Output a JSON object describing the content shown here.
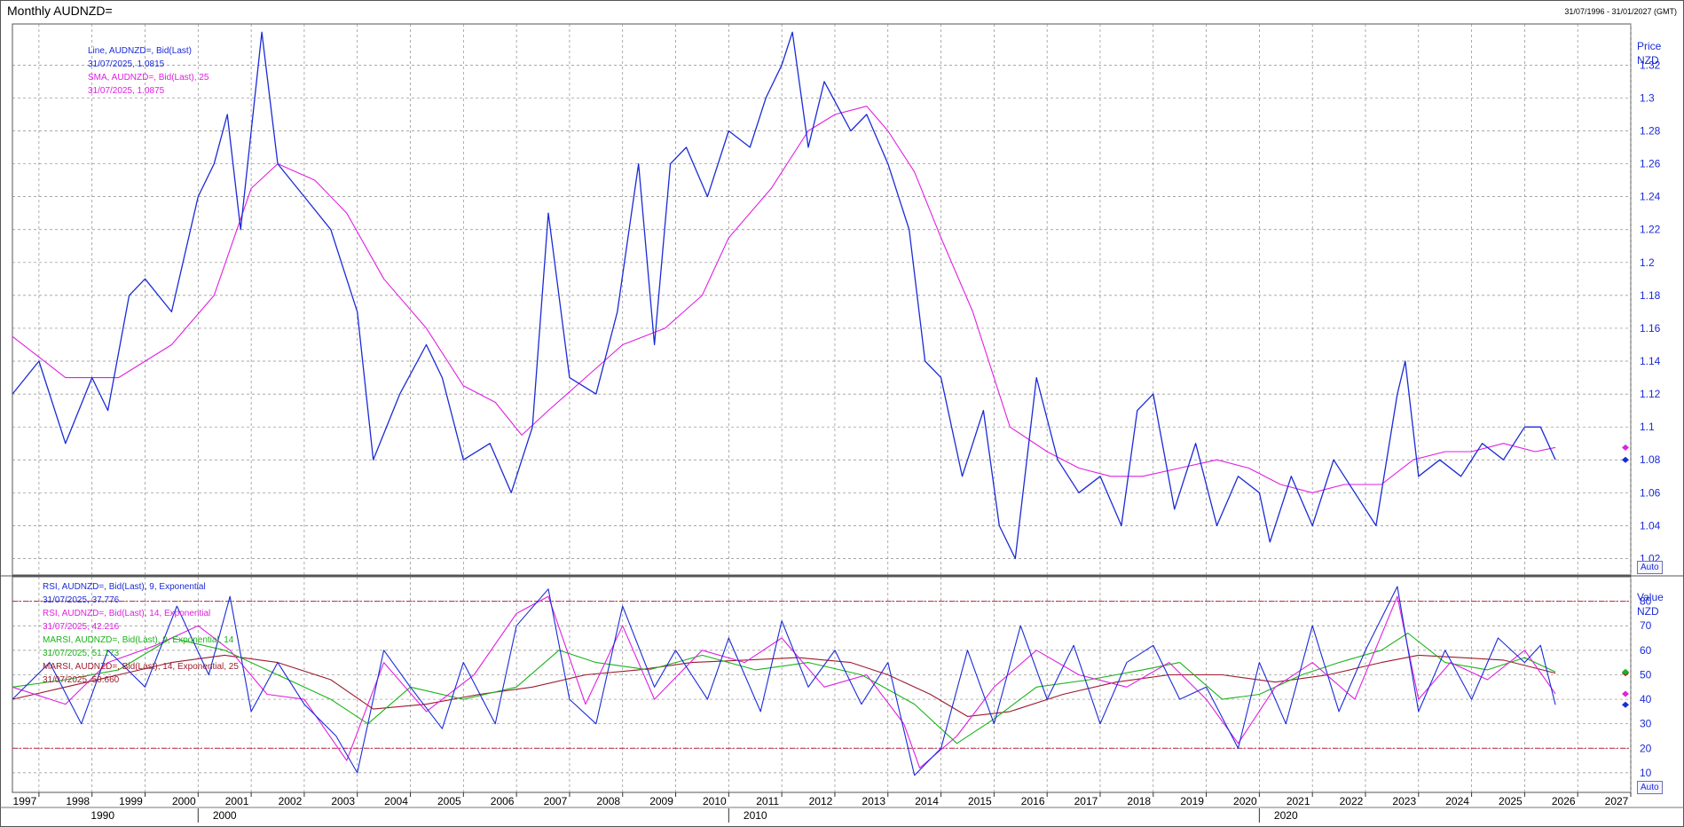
{
  "header": {
    "title": "Monthly AUDNZD=",
    "range": "31/07/1996 - 31/01/2027 (GMT)"
  },
  "price_panel": {
    "axis_title": "Price",
    "axis_unit": "NZD",
    "auto_label": "Auto",
    "legend": [
      {
        "label": "Line, AUDNZD=, Bid(Last)",
        "value": "31/07/2025, 1.0815",
        "color": "#1a2bd6"
      },
      {
        "label": "SMA, AUDNZD=, Bid(Last),  25",
        "value": "31/07/2025, 1.0875",
        "color": "#e020e0"
      }
    ],
    "y_ticks": [
      "1.02",
      "1.04",
      "1.06",
      "1.08",
      "1.1",
      "1.12",
      "1.14",
      "1.16",
      "1.18",
      "1.2",
      "1.22",
      "1.24",
      "1.26",
      "1.28",
      "1.3",
      "1.32"
    ]
  },
  "rsi_panel": {
    "axis_title": "Value",
    "axis_unit": "NZD",
    "auto_label": "Auto",
    "legend": [
      {
        "label": "RSI, AUDNZD=, Bid(Last),  9, Exponential",
        "value": "31/07/2025, 37.776",
        "color": "#1a2bd6"
      },
      {
        "label": "RSI, AUDNZD=, Bid(Last),  14, Exponential",
        "value": "31/07/2025, 42.216",
        "color": "#e020e0"
      },
      {
        "label": "MARSI, AUDNZD=, Bid(Last),  9, Exponential, 14",
        "value": "31/07/2025, 51.173",
        "color": "#19b319"
      },
      {
        "label": "MARSI, AUDNZD=, Bid(Last),  14, Exponential, 25",
        "value": "31/07/2025, 50.660",
        "color": "#9b1c2c"
      }
    ],
    "y_ticks": [
      "10",
      "20",
      "30",
      "40",
      "50",
      "60",
      "70",
      "80"
    ]
  },
  "x_axis": {
    "years": [
      "1997",
      "1998",
      "1999",
      "2000",
      "2001",
      "2002",
      "2003",
      "2004",
      "2005",
      "2006",
      "2007",
      "2008",
      "2009",
      "2010",
      "2011",
      "2012",
      "2013",
      "2014",
      "2015",
      "2016",
      "2017",
      "2018",
      "2019",
      "2020",
      "2021",
      "2022",
      "2023",
      "2024",
      "2025",
      "2026",
      "2027"
    ],
    "decades": [
      "1990",
      "2000",
      "2010",
      "2020"
    ]
  },
  "colors": {
    "price": "#1a2bd6",
    "sma": "#e020e0",
    "rsi9": "#1a2bd6",
    "rsi14": "#e020e0",
    "marsi9": "#19b319",
    "marsi14": "#9b1c2c",
    "grid": "#8a8a8a",
    "level": "#c0203a"
  },
  "chart_data": [
    {
      "type": "line",
      "title": "Monthly AUDNZD=",
      "ylabel": "Price NZD",
      "ylim": [
        1.01,
        1.345
      ],
      "x_unit": "year",
      "grid": true,
      "legend_position": "top-left",
      "series": [
        {
          "name": "Line, AUDNZD=, Bid(Last)",
          "x": [
            1996.5,
            1997.0,
            1997.5,
            1998.0,
            1998.3,
            1998.7,
            1999.0,
            1999.5,
            2000.0,
            2000.3,
            2000.55,
            2000.8,
            2001.2,
            2001.5,
            2002.0,
            2002.5,
            2003.0,
            2003.3,
            2003.8,
            2004.3,
            2004.6,
            2005.0,
            2005.5,
            2005.9,
            2006.3,
            2006.6,
            2007.0,
            2007.5,
            2007.9,
            2008.3,
            2008.6,
            2008.9,
            2009.2,
            2009.6,
            2010.0,
            2010.4,
            2010.7,
            2011.0,
            2011.2,
            2011.5,
            2011.8,
            2012.3,
            2012.6,
            2013.0,
            2013.4,
            2013.7,
            2014.0,
            2014.4,
            2014.8,
            2015.1,
            2015.4,
            2015.8,
            2016.2,
            2016.6,
            2017.0,
            2017.4,
            2017.7,
            2018.0,
            2018.4,
            2018.8,
            2019.2,
            2019.6,
            2020.0,
            2020.2,
            2020.6,
            2021.0,
            2021.4,
            2021.8,
            2022.2,
            2022.6,
            2022.75,
            2023.0,
            2023.4,
            2023.8,
            2024.2,
            2024.6,
            2025.0,
            2025.3,
            2025.58
          ],
          "values": [
            1.12,
            1.14,
            1.09,
            1.13,
            1.11,
            1.18,
            1.19,
            1.17,
            1.24,
            1.26,
            1.29,
            1.22,
            1.34,
            1.26,
            1.24,
            1.22,
            1.17,
            1.08,
            1.12,
            1.15,
            1.13,
            1.08,
            1.09,
            1.06,
            1.1,
            1.23,
            1.13,
            1.12,
            1.17,
            1.26,
            1.15,
            1.26,
            1.27,
            1.24,
            1.28,
            1.27,
            1.3,
            1.32,
            1.34,
            1.27,
            1.31,
            1.28,
            1.29,
            1.26,
            1.22,
            1.14,
            1.13,
            1.07,
            1.11,
            1.04,
            1.02,
            1.13,
            1.08,
            1.06,
            1.07,
            1.04,
            1.11,
            1.12,
            1.05,
            1.09,
            1.04,
            1.07,
            1.06,
            1.03,
            1.07,
            1.04,
            1.08,
            1.06,
            1.04,
            1.12,
            1.14,
            1.07,
            1.08,
            1.07,
            1.09,
            1.08,
            1.1,
            1.1,
            1.08
          ]
        },
        {
          "name": "SMA, AUDNZD=, Bid(Last),  25",
          "x": [
            1996.5,
            1997.5,
            1998.5,
            1999.5,
            2000.3,
            2001.0,
            2001.5,
            2002.2,
            2002.8,
            2003.5,
            2004.3,
            2005.0,
            2005.6,
            2006.1,
            2006.6,
            2007.3,
            2008.0,
            2008.8,
            2009.5,
            2010.0,
            2010.8,
            2011.5,
            2012.0,
            2012.6,
            2013.0,
            2013.5,
            2014.0,
            2014.6,
            2015.3,
            2016.0,
            2016.6,
            2017.2,
            2017.8,
            2018.5,
            2019.2,
            2019.8,
            2020.4,
            2021.0,
            2021.6,
            2022.3,
            2022.9,
            2023.5,
            2024.0,
            2024.6,
            2025.2,
            2025.58
          ],
          "values": [
            1.155,
            1.13,
            1.13,
            1.15,
            1.18,
            1.245,
            1.26,
            1.25,
            1.23,
            1.19,
            1.16,
            1.125,
            1.115,
            1.095,
            1.11,
            1.13,
            1.15,
            1.16,
            1.18,
            1.215,
            1.245,
            1.28,
            1.29,
            1.295,
            1.28,
            1.255,
            1.215,
            1.17,
            1.1,
            1.085,
            1.075,
            1.07,
            1.07,
            1.075,
            1.08,
            1.075,
            1.065,
            1.06,
            1.065,
            1.065,
            1.08,
            1.085,
            1.085,
            1.09,
            1.085,
            1.0875
          ]
        }
      ]
    },
    {
      "type": "line",
      "ylabel": "Value NZD",
      "ylim": [
        2,
        90
      ],
      "x_unit": "year",
      "grid": true,
      "legend_position": "top-left",
      "reference_lines": [
        20,
        80
      ],
      "series": [
        {
          "name": "RSI, AUDNZD=, Bid(Last),  9, Exponential",
          "x": [
            1996.5,
            1997.2,
            1997.8,
            1998.3,
            1999.0,
            1999.6,
            2000.2,
            2000.6,
            2001.0,
            2001.5,
            2002.0,
            2002.6,
            2003.0,
            2003.5,
            2004.0,
            2004.6,
            2005.0,
            2005.6,
            2006.0,
            2006.6,
            2007.0,
            2007.5,
            2008.0,
            2008.6,
            2009.0,
            2009.6,
            2010.0,
            2010.6,
            2011.0,
            2011.5,
            2012.0,
            2012.5,
            2013.0,
            2013.5,
            2014.0,
            2014.5,
            2015.0,
            2015.5,
            2016.0,
            2016.5,
            2017.0,
            2017.5,
            2018.0,
            2018.5,
            2019.0,
            2019.6,
            2020.0,
            2020.5,
            2021.0,
            2021.5,
            2022.0,
            2022.6,
            2023.0,
            2023.5,
            2024.0,
            2024.5,
            2025.0,
            2025.3,
            2025.58
          ],
          "values": [
            40,
            55,
            30,
            60,
            45,
            78,
            50,
            82,
            35,
            55,
            38,
            25,
            10,
            60,
            45,
            28,
            55,
            30,
            70,
            85,
            40,
            30,
            78,
            45,
            60,
            40,
            65,
            35,
            72,
            45,
            60,
            38,
            55,
            9,
            20,
            60,
            30,
            70,
            40,
            62,
            30,
            55,
            62,
            40,
            45,
            20,
            55,
            30,
            70,
            35,
            60,
            86,
            35,
            60,
            40,
            65,
            55,
            62,
            37.776
          ]
        },
        {
          "name": "RSI, AUDNZD=, Bid(Last),  14, Exponential",
          "x": [
            1996.5,
            1997.5,
            1998.3,
            1999.2,
            2000.0,
            2000.6,
            2001.3,
            2002.0,
            2002.8,
            2003.5,
            2004.3,
            2005.2,
            2006.0,
            2006.6,
            2007.3,
            2008.0,
            2008.6,
            2009.5,
            2010.3,
            2011.0,
            2011.8,
            2012.6,
            2013.3,
            2013.6,
            2014.3,
            2015.0,
            2015.8,
            2016.6,
            2017.5,
            2018.3,
            2019.0,
            2019.6,
            2020.3,
            2021.0,
            2021.8,
            2022.6,
            2023.0,
            2023.6,
            2024.3,
            2025.0,
            2025.58
          ],
          "values": [
            45,
            38,
            55,
            62,
            70,
            60,
            42,
            40,
            15,
            55,
            35,
            50,
            75,
            82,
            38,
            70,
            40,
            60,
            55,
            65,
            45,
            50,
            30,
            12,
            25,
            45,
            60,
            50,
            45,
            55,
            40,
            22,
            45,
            55,
            40,
            82,
            40,
            55,
            48,
            60,
            42.216
          ]
        },
        {
          "name": "MARSI, AUDNZD=, Bid(Last),  9, Exponential, 14",
          "x": [
            1996.5,
            1997.5,
            1998.5,
            1999.5,
            2000.5,
            2001.5,
            2002.5,
            2003.2,
            2004.0,
            2005.0,
            2006.0,
            2006.8,
            2007.5,
            2008.5,
            2009.5,
            2010.5,
            2011.5,
            2012.5,
            2013.5,
            2014.3,
            2015.0,
            2015.8,
            2016.8,
            2017.8,
            2018.5,
            2019.3,
            2020.0,
            2020.8,
            2021.5,
            2022.3,
            2022.8,
            2023.5,
            2024.3,
            2025.0,
            2025.58
          ],
          "values": [
            45,
            48,
            52,
            65,
            60,
            50,
            40,
            30,
            45,
            40,
            45,
            60,
            55,
            52,
            58,
            52,
            55,
            50,
            38,
            22,
            32,
            45,
            48,
            52,
            55,
            40,
            42,
            50,
            55,
            60,
            67,
            55,
            52,
            57,
            51.173
          ]
        },
        {
          "name": "MARSI, AUDNZD=, Bid(Last),  14, Exponential, 25",
          "x": [
            1996.5,
            1997.5,
            1998.5,
            1999.5,
            2000.5,
            2001.5,
            2002.5,
            2003.3,
            2004.3,
            2005.3,
            2006.3,
            2007.3,
            2008.3,
            2009.3,
            2010.3,
            2011.3,
            2012.3,
            2013.0,
            2013.8,
            2014.5,
            2015.3,
            2016.3,
            2017.3,
            2018.3,
            2019.3,
            2020.3,
            2021.3,
            2022.3,
            2023.0,
            2023.8,
            2024.6,
            2025.58
          ],
          "values": [
            40,
            45,
            50,
            55,
            58,
            55,
            48,
            36,
            38,
            42,
            45,
            50,
            52,
            55,
            56,
            57,
            55,
            50,
            42,
            33,
            35,
            42,
            47,
            50,
            50,
            47,
            50,
            55,
            58,
            57,
            56,
            50.66
          ]
        }
      ]
    }
  ]
}
